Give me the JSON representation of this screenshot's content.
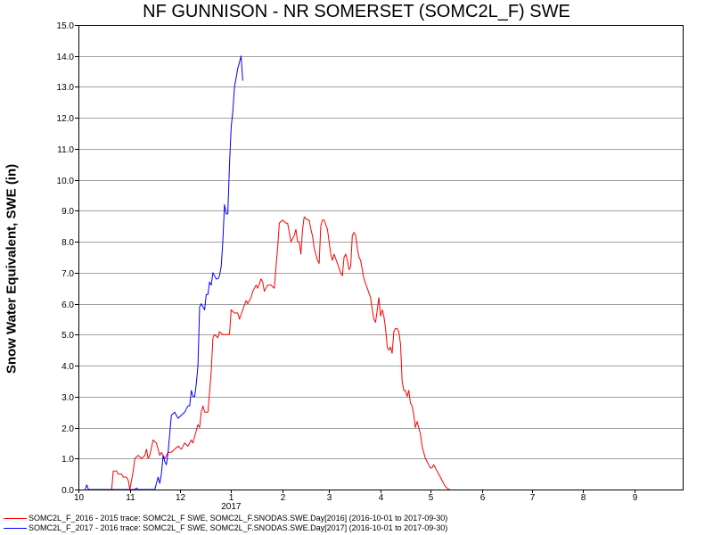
{
  "chart_data": {
    "type": "line",
    "title": "NF GUNNISON - NR SOMERSET (SOMC2L_F) SWE",
    "ylabel": "Snow Water Equivalent, SWE (in)",
    "xlabel": "",
    "ylim": [
      0,
      15
    ],
    "yticks": [
      "0.0",
      "1.0",
      "2.0",
      "3.0",
      "4.0",
      "5.0",
      "6.0",
      "7.0",
      "8.0",
      "9.0",
      "10.0",
      "11.0",
      "12.0",
      "13.0",
      "14.0",
      "15.0"
    ],
    "xticks": [
      {
        "day": 0,
        "label": "10"
      },
      {
        "day": 31,
        "label": "11"
      },
      {
        "day": 61,
        "label": "12"
      },
      {
        "day": 92,
        "label": "1"
      },
      {
        "day": 123,
        "label": "2"
      },
      {
        "day": 151,
        "label": "3"
      },
      {
        "day": 182,
        "label": "4"
      },
      {
        "day": 212,
        "label": "5"
      },
      {
        "day": 243,
        "label": "6"
      },
      {
        "day": 273,
        "label": "7"
      },
      {
        "day": 304,
        "label": "8"
      },
      {
        "day": 335,
        "label": "9"
      }
    ],
    "year_label": {
      "day": 92,
      "label": "2017"
    },
    "xlim_days": [
      0,
      364
    ],
    "grid": "horizontal",
    "series": [
      {
        "name": "SOMC2L_F_2016 - 2015 trace: SOMC2L_F SWE, SOMC2L_F.SNODAS.SWE.Day[2016] (2016-10-01 to 2017-09-30)",
        "color": "#ff0000",
        "points": [
          [
            12,
            0.0
          ],
          [
            20,
            0.0
          ],
          [
            21,
            0.6
          ],
          [
            23,
            0.6
          ],
          [
            24,
            0.5
          ],
          [
            26,
            0.5
          ],
          [
            27,
            0.4
          ],
          [
            29,
            0.4
          ],
          [
            30,
            0.3
          ],
          [
            31,
            0.0
          ],
          [
            32,
            0.3
          ],
          [
            33,
            0.6
          ],
          [
            34,
            1.0
          ],
          [
            36,
            1.1
          ],
          [
            38,
            1.0
          ],
          [
            40,
            1.1
          ],
          [
            41,
            1.3
          ],
          [
            42,
            1.0
          ],
          [
            43,
            1.1
          ],
          [
            45,
            1.6
          ],
          [
            47,
            1.5
          ],
          [
            49,
            1.1
          ],
          [
            50,
            1.2
          ],
          [
            52,
            1.0
          ],
          [
            54,
            1.2
          ],
          [
            56,
            1.2
          ],
          [
            58,
            1.3
          ],
          [
            60,
            1.4
          ],
          [
            62,
            1.3
          ],
          [
            64,
            1.5
          ],
          [
            66,
            1.4
          ],
          [
            68,
            1.6
          ],
          [
            69,
            1.5
          ],
          [
            71,
            1.9
          ],
          [
            72,
            2.1
          ],
          [
            73,
            2.0
          ],
          [
            74,
            2.5
          ],
          [
            75,
            2.7
          ],
          [
            76,
            2.5
          ],
          [
            78,
            2.5
          ],
          [
            80,
            3.8
          ],
          [
            81,
            4.9
          ],
          [
            82,
            5.0
          ],
          [
            84,
            4.9
          ],
          [
            85,
            5.1
          ],
          [
            87,
            5.0
          ],
          [
            89,
            5.0
          ],
          [
            91,
            5.0
          ],
          [
            92,
            5.8
          ],
          [
            94,
            5.7
          ],
          [
            96,
            5.7
          ],
          [
            97,
            5.5
          ],
          [
            99,
            5.8
          ],
          [
            101,
            6.1
          ],
          [
            102,
            6.0
          ],
          [
            104,
            6.2
          ],
          [
            105,
            6.4
          ],
          [
            107,
            6.6
          ],
          [
            108,
            6.5
          ],
          [
            110,
            6.8
          ],
          [
            111,
            6.7
          ],
          [
            112,
            6.4
          ],
          [
            114,
            6.6
          ],
          [
            116,
            6.6
          ],
          [
            118,
            6.5
          ],
          [
            119,
            7.2
          ],
          [
            120,
            7.8
          ],
          [
            121,
            8.6
          ],
          [
            123,
            8.7
          ],
          [
            125,
            8.6
          ],
          [
            126,
            8.6
          ],
          [
            127,
            8.3
          ],
          [
            128,
            8.0
          ],
          [
            129,
            8.1
          ],
          [
            130,
            8.2
          ],
          [
            131,
            8.4
          ],
          [
            132,
            8.0
          ],
          [
            133,
            8.0
          ],
          [
            134,
            7.6
          ],
          [
            135,
            8.4
          ],
          [
            136,
            8.8
          ],
          [
            138,
            8.7
          ],
          [
            139,
            8.7
          ],
          [
            140,
            8.4
          ],
          [
            141,
            8.2
          ],
          [
            142,
            7.8
          ],
          [
            144,
            7.4
          ],
          [
            145,
            7.3
          ],
          [
            146,
            8.5
          ],
          [
            147,
            8.7
          ],
          [
            148,
            8.7
          ],
          [
            150,
            8.4
          ],
          [
            151,
            8.0
          ],
          [
            152,
            7.6
          ],
          [
            153,
            7.4
          ],
          [
            154,
            7.6
          ],
          [
            156,
            7.3
          ],
          [
            158,
            7.0
          ],
          [
            159,
            6.9
          ],
          [
            160,
            7.5
          ],
          [
            161,
            7.6
          ],
          [
            162,
            7.4
          ],
          [
            163,
            7.1
          ],
          [
            164,
            7.2
          ],
          [
            165,
            8.2
          ],
          [
            166,
            8.3
          ],
          [
            167,
            8.2
          ],
          [
            168,
            7.8
          ],
          [
            169,
            7.5
          ],
          [
            170,
            7.4
          ],
          [
            171,
            7.1
          ],
          [
            172,
            6.8
          ],
          [
            174,
            6.5
          ],
          [
            176,
            6.2
          ],
          [
            177,
            5.8
          ],
          [
            178,
            5.5
          ],
          [
            179,
            5.4
          ],
          [
            180,
            5.8
          ],
          [
            181,
            6.2
          ],
          [
            182,
            5.6
          ],
          [
            183,
            5.8
          ],
          [
            184,
            5.6
          ],
          [
            185,
            5.2
          ],
          [
            186,
            4.6
          ],
          [
            187,
            4.5
          ],
          [
            188,
            4.6
          ],
          [
            189,
            4.4
          ],
          [
            190,
            5.1
          ],
          [
            191,
            5.2
          ],
          [
            192,
            5.2
          ],
          [
            193,
            5.1
          ],
          [
            194,
            4.7
          ],
          [
            195,
            3.5
          ],
          [
            196,
            3.2
          ],
          [
            197,
            3.2
          ],
          [
            198,
            3.0
          ],
          [
            199,
            3.2
          ],
          [
            200,
            2.8
          ],
          [
            201,
            2.7
          ],
          [
            202,
            2.4
          ],
          [
            203,
            2.0
          ],
          [
            204,
            2.2
          ],
          [
            205,
            2.0
          ],
          [
            206,
            1.8
          ],
          [
            207,
            1.4
          ],
          [
            208,
            1.2
          ],
          [
            209,
            1.0
          ],
          [
            210,
            0.9
          ],
          [
            211,
            0.8
          ],
          [
            212,
            0.7
          ],
          [
            213,
            0.7
          ],
          [
            214,
            0.8
          ],
          [
            215,
            0.7
          ],
          [
            216,
            0.6
          ],
          [
            217,
            0.5
          ],
          [
            218,
            0.4
          ],
          [
            219,
            0.3
          ],
          [
            220,
            0.2
          ],
          [
            221,
            0.1
          ],
          [
            222,
            0.05
          ],
          [
            223,
            0.0
          ],
          [
            224,
            0.0
          ]
        ]
      },
      {
        "name": "SOMC2L_F_2017 - 2016 trace: SOMC2L_F SWE, SOMC2L_F.SNODAS.SWE.Day[2017] (2016-10-01 to 2017-09-30)",
        "color": "#0000ff",
        "points": [
          [
            4,
            0.0
          ],
          [
            5,
            0.15
          ],
          [
            6,
            0.0
          ],
          [
            10,
            0.0
          ],
          [
            34,
            0.0
          ],
          [
            35,
            0.05
          ],
          [
            36,
            0.0
          ],
          [
            46,
            0.0
          ],
          [
            47,
            0.2
          ],
          [
            48,
            0.4
          ],
          [
            49,
            0.2
          ],
          [
            50,
            0.5
          ],
          [
            51,
            1.1
          ],
          [
            52,
            0.9
          ],
          [
            53,
            0.8
          ],
          [
            54,
            1.2
          ],
          [
            56,
            2.4
          ],
          [
            58,
            2.5
          ],
          [
            60,
            2.3
          ],
          [
            62,
            2.4
          ],
          [
            64,
            2.5
          ],
          [
            66,
            2.7
          ],
          [
            67,
            2.7
          ],
          [
            68,
            3.2
          ],
          [
            69,
            3.0
          ],
          [
            70,
            3.0
          ],
          [
            71,
            3.4
          ],
          [
            72,
            4.0
          ],
          [
            73,
            5.9
          ],
          [
            74,
            6.0
          ],
          [
            75,
            5.9
          ],
          [
            76,
            5.8
          ],
          [
            77,
            6.3
          ],
          [
            78,
            6.3
          ],
          [
            79,
            6.7
          ],
          [
            80,
            6.6
          ],
          [
            81,
            7.0
          ],
          [
            82,
            6.9
          ],
          [
            83,
            6.8
          ],
          [
            84,
            6.8
          ],
          [
            85,
            6.9
          ],
          [
            86,
            7.2
          ],
          [
            87,
            8.0
          ],
          [
            88,
            9.2
          ],
          [
            89,
            8.9
          ],
          [
            90,
            8.9
          ],
          [
            91,
            10.5
          ],
          [
            92,
            11.7
          ],
          [
            93,
            12.2
          ],
          [
            94,
            13.0
          ],
          [
            95,
            13.3
          ],
          [
            96,
            13.6
          ],
          [
            97,
            13.8
          ],
          [
            98,
            14.0
          ],
          [
            99,
            13.2
          ]
        ]
      }
    ]
  }
}
